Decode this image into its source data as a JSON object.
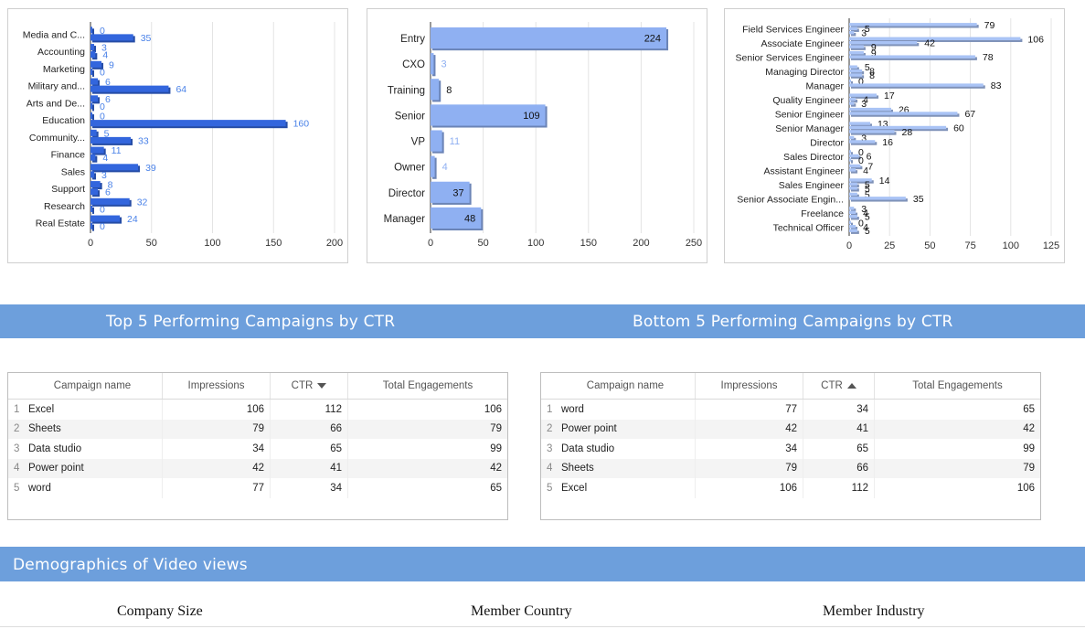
{
  "charts": [
    {
      "type": "bar",
      "categories": [
        "Media and C...",
        "Accounting",
        "Marketing",
        "Military and...",
        "Arts and De...",
        "Education",
        "Community...",
        "Finance",
        "Sales",
        "Support",
        "Research",
        "Real Estate"
      ],
      "series": [
        {
          "values": [
            0,
            3,
            9,
            6,
            6,
            0,
            5,
            11,
            39,
            8,
            32,
            24
          ]
        },
        {
          "values": [
            35,
            4,
            0,
            64,
            0,
            160,
            33,
            4,
            3,
            6,
            0,
            0
          ]
        }
      ],
      "xlim": [
        0,
        200
      ],
      "xticks": [
        0,
        50,
        100,
        150,
        200
      ],
      "label_color": "#4a82e8",
      "bar_color": "#3366dd"
    },
    {
      "type": "bar",
      "categories": [
        "Entry",
        "CXO",
        "Training",
        "Senior",
        "VP",
        "Owner",
        "Director",
        "Manager"
      ],
      "series": [
        {
          "values": [
            224,
            3,
            8,
            109,
            11,
            4,
            37,
            48
          ]
        }
      ],
      "xlim": [
        0,
        250
      ],
      "xticks": [
        0,
        50,
        100,
        150,
        200,
        250
      ],
      "bar_color": "#8fb0f2"
    },
    {
      "type": "bar",
      "categories": [
        "Field Services Engineer",
        "Associate Engineer",
        "Senior Services Engineer",
        "Managing Director",
        "Manager",
        "Quality Engineer",
        "Senior Engineer",
        "Senior Manager",
        "Director",
        "Sales Director",
        "Assistant Engineer",
        "Sales Engineer",
        "Senior Associate Engin...",
        "Freelance",
        "Technical Officer"
      ],
      "series": [
        {
          "values": [
            79,
            106,
            9,
            5,
            0,
            17,
            26,
            13,
            3,
            0,
            7,
            14,
            5,
            3,
            0
          ]
        },
        {
          "values": [
            5,
            42,
            78,
            8,
            83,
            4,
            67,
            60,
            16,
            6,
            4,
            5,
            35,
            4,
            4
          ]
        },
        {
          "values": [
            3,
            9,
            null,
            8,
            null,
            3,
            null,
            28,
            null,
            0,
            null,
            5,
            null,
            5,
            5
          ]
        }
      ],
      "xlim": [
        0,
        125
      ],
      "xticks": [
        0,
        25,
        50,
        75,
        100,
        125
      ],
      "bar_color": "#a9c3f5"
    }
  ],
  "banners": {
    "top5": "Top 5 Performing Campaigns by CTR",
    "bottom5": "Bottom 5 Performing Campaigns by CTR",
    "demographics": "Demographics of Video views"
  },
  "top_table": {
    "headers": [
      "Campaign name",
      "Impressions",
      "CTR",
      "Total Engagements"
    ],
    "rows": [
      {
        "idx": "1",
        "name": "Excel",
        "impressions": "106",
        "ctr": "112",
        "engagements": "106"
      },
      {
        "idx": "2",
        "name": "Sheets",
        "impressions": "79",
        "ctr": "66",
        "engagements": "79"
      },
      {
        "idx": "3",
        "name": "Data studio",
        "impressions": "34",
        "ctr": "65",
        "engagements": "99"
      },
      {
        "idx": "4",
        "name": "Power point",
        "impressions": "42",
        "ctr": "41",
        "engagements": "42"
      },
      {
        "idx": "5",
        "name": "word",
        "impressions": "77",
        "ctr": "34",
        "engagements": "65"
      }
    ]
  },
  "bottom_table": {
    "headers": [
      "Campaign name",
      "Impressions",
      "CTR",
      "Total Engagements"
    ],
    "rows": [
      {
        "idx": "1",
        "name": "word",
        "impressions": "77",
        "ctr": "34",
        "engagements": "65"
      },
      {
        "idx": "2",
        "name": "Power point",
        "impressions": "42",
        "ctr": "41",
        "engagements": "42"
      },
      {
        "idx": "3",
        "name": "Data studio",
        "impressions": "34",
        "ctr": "65",
        "engagements": "99"
      },
      {
        "idx": "4",
        "name": "Sheets",
        "impressions": "79",
        "ctr": "66",
        "engagements": "79"
      },
      {
        "idx": "5",
        "name": "Excel",
        "impressions": "106",
        "ctr": "112",
        "engagements": "106"
      }
    ]
  },
  "section_titles": {
    "company_size": "Company Size",
    "member_country": "Member Country",
    "member_industry": "Member Industry"
  }
}
